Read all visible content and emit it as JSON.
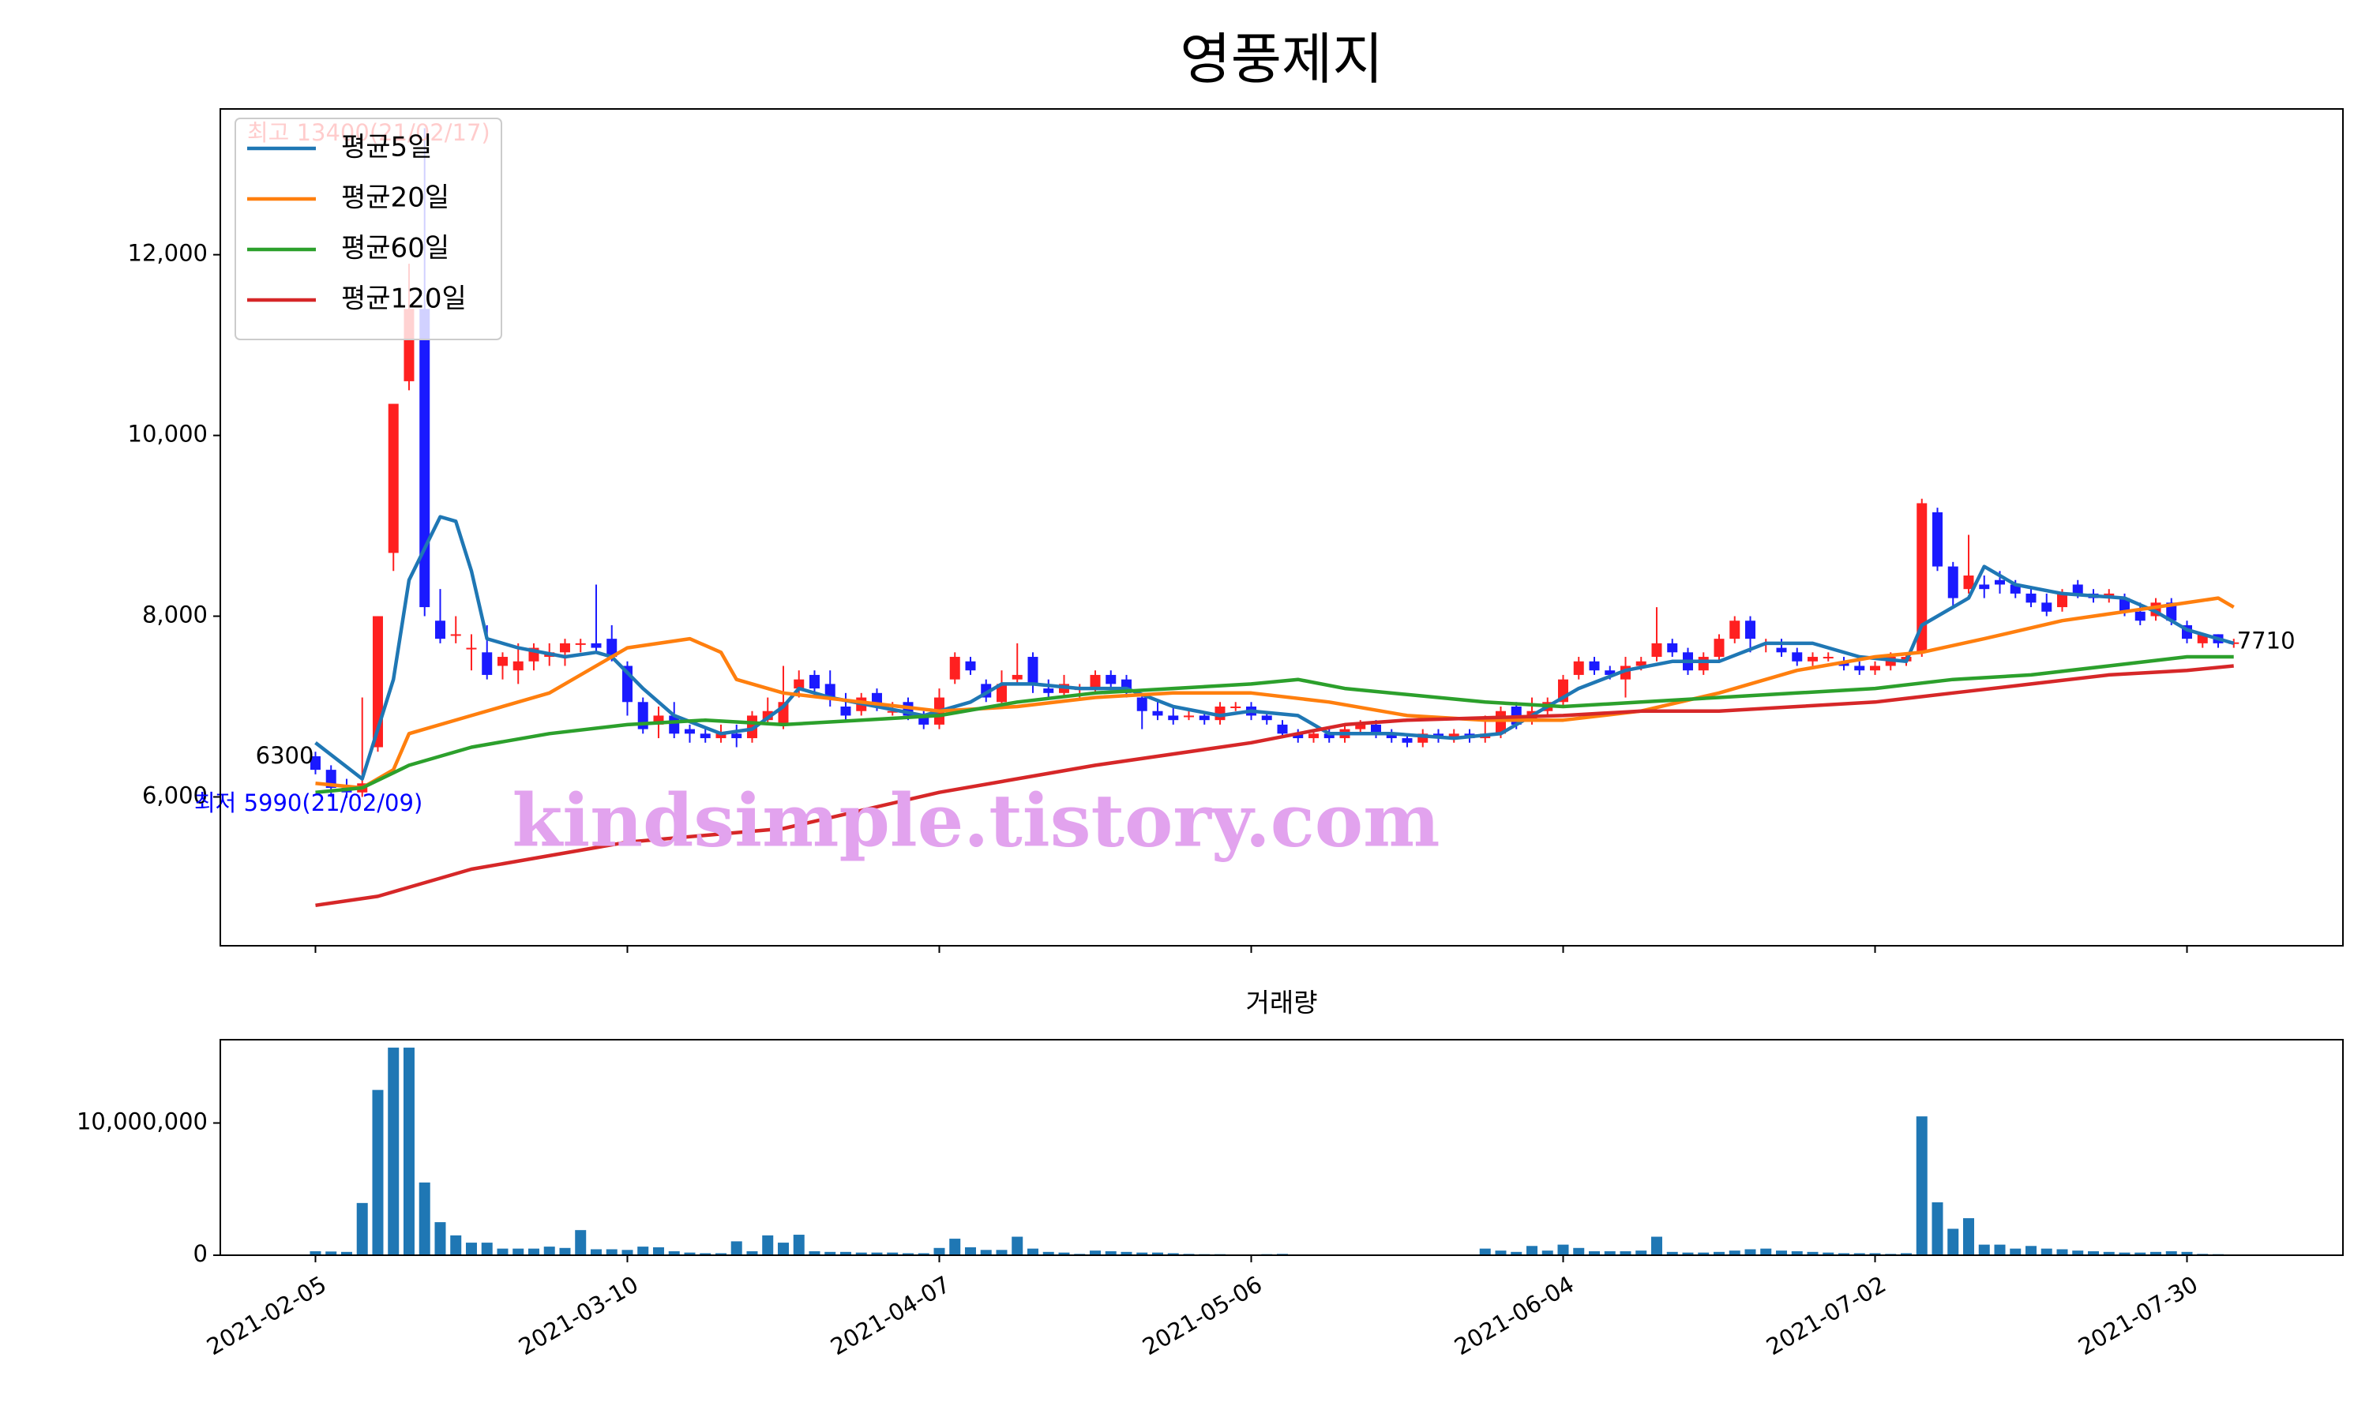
{
  "chart_data": [
    {
      "type": "candlestick",
      "title": "영풍제지",
      "open": [
        6450,
        6300,
        6100,
        6050,
        6550,
        8700,
        10600,
        11400,
        7950,
        7800,
        7650,
        7600,
        7450,
        7400,
        7500,
        7550,
        7600,
        7700,
        7700,
        7750,
        7450,
        7050,
        6800,
        6900,
        6750,
        6700,
        6650,
        6700,
        6650,
        6850,
        6800,
        7200,
        7350,
        7250,
        7000,
        6950,
        7150,
        6950,
        7050,
        6900,
        6800,
        7300,
        7500,
        7250,
        7050,
        7300,
        7550,
        7200,
        7150,
        7200,
        7200,
        7350,
        7300,
        7100,
        6950,
        6900,
        6900,
        6900,
        6850,
        7000,
        7000,
        6900,
        6800,
        6700,
        6650,
        6700,
        6650,
        6750,
        6800,
        6700,
        6650,
        6600,
        6700,
        6650,
        6700,
        6650,
        6700,
        7000,
        6850,
        6950,
        7050,
        7350,
        7500,
        7400,
        7300,
        7450,
        7550,
        7700,
        7600,
        7400,
        7550,
        7750,
        7950,
        7700,
        7650,
        7600,
        7500,
        7550,
        7500,
        7450,
        7400,
        7450,
        7500,
        7600,
        9150,
        8550,
        8300,
        8350,
        8400,
        8350,
        8250,
        8150,
        8100,
        8350,
        8250,
        8200,
        8200,
        8050,
        8000,
        8150,
        7900,
        7700,
        7800,
        7700
      ],
      "high": [
        6500,
        6350,
        6200,
        7100,
        8000,
        10350,
        11900,
        13400,
        8300,
        8000,
        7800,
        7900,
        7600,
        7700,
        7700,
        7700,
        7750,
        7750,
        8350,
        7900,
        7500,
        7100,
        7000,
        7050,
        6800,
        6750,
        6800,
        6800,
        6950,
        7100,
        7450,
        7400,
        7400,
        7400,
        7150,
        7150,
        7200,
        7050,
        7100,
        6950,
        7200,
        7600,
        7550,
        7300,
        7400,
        7700,
        7600,
        7300,
        7350,
        7250,
        7400,
        7400,
        7350,
        7150,
        7050,
        7000,
        6950,
        6950,
        7050,
        7050,
        7050,
        6950,
        6850,
        6750,
        6750,
        6750,
        6800,
        6850,
        6850,
        6750,
        6700,
        6750,
        6750,
        6750,
        6750,
        6900,
        7000,
        7050,
        7100,
        7100,
        7350,
        7550,
        7550,
        7450,
        7550,
        7550,
        8100,
        7750,
        7650,
        7600,
        7800,
        8000,
        8000,
        7750,
        7750,
        7650,
        7600,
        7600,
        7550,
        7500,
        7500,
        7600,
        7600,
        9300,
        9200,
        8600,
        8900,
        8450,
        8500,
        8400,
        8300,
        8250,
        8300,
        8400,
        8300,
        8300,
        8250,
        8150,
        8200,
        8200,
        7950,
        7800,
        7800,
        7750
      ],
      "low": [
        6250,
        6000,
        5990,
        6000,
        6500,
        8500,
        10500,
        8000,
        7700,
        7700,
        7400,
        7300,
        7300,
        7250,
        7400,
        7450,
        7450,
        7600,
        7600,
        7500,
        6900,
        6700,
        6650,
        6650,
        6600,
        6600,
        6600,
        6550,
        6600,
        6800,
        6750,
        7100,
        7100,
        7000,
        6850,
        6900,
        6950,
        6900,
        6850,
        6750,
        6750,
        7250,
        7350,
        7050,
        7000,
        7250,
        7150,
        7100,
        7100,
        7100,
        7150,
        7200,
        7100,
        6750,
        6850,
        6800,
        6850,
        6800,
        6800,
        6950,
        6850,
        6800,
        6650,
        6600,
        6600,
        6600,
        6600,
        6700,
        6650,
        6600,
        6550,
        6550,
        6600,
        6600,
        6600,
        6600,
        6650,
        6750,
        6800,
        6900,
        7000,
        7300,
        7350,
        7300,
        7100,
        7400,
        7500,
        7550,
        7350,
        7350,
        7500,
        7700,
        7600,
        7600,
        7550,
        7450,
        7450,
        7500,
        7400,
        7350,
        7350,
        7400,
        7450,
        7550,
        8500,
        8100,
        8250,
        8200,
        8250,
        8200,
        8100,
        8000,
        8050,
        8200,
        8150,
        8150,
        8000,
        7900,
        7950,
        7900,
        7700,
        7650,
        7650,
        7650
      ],
      "close": [
        6300,
        6100,
        6050,
        6150,
        8000,
        10350,
        11400,
        8100,
        7750,
        7800,
        7650,
        7350,
        7550,
        7500,
        7650,
        7600,
        7700,
        7700,
        7650,
        7550,
        7050,
        6750,
        6900,
        6700,
        6700,
        6650,
        6700,
        6650,
        6900,
        6950,
        7050,
        7300,
        7200,
        7100,
        6900,
        7100,
        7000,
        6950,
        6900,
        6800,
        7100,
        7550,
        7400,
        7100,
        7250,
        7350,
        7250,
        7150,
        7250,
        7200,
        7350,
        7250,
        7150,
        6950,
        6900,
        6850,
        6900,
        6850,
        7000,
        7000,
        6900,
        6850,
        6700,
        6650,
        6700,
        6650,
        6750,
        6800,
        6700,
        6650,
        6600,
        6700,
        6650,
        6700,
        6650,
        6700,
        6950,
        6800,
        6950,
        7050,
        7300,
        7500,
        7400,
        7350,
        7450,
        7500,
        7700,
        7600,
        7400,
        7550,
        7750,
        7950,
        7750,
        7700,
        7600,
        7500,
        7550,
        7550,
        7450,
        7400,
        7450,
        7550,
        7550,
        9250,
        8550,
        8200,
        8450,
        8300,
        8350,
        8250,
        8150,
        8050,
        8250,
        8250,
        8200,
        8250,
        8050,
        7950,
        8150,
        7950,
        7750,
        7800,
        7700,
        7710
      ],
      "up_color": "#ff2020",
      "down_color": "#1a1aff",
      "series": [
        {
          "name": "평균5일",
          "color": "#1f77b4",
          "x": [
            0,
            3,
            5,
            6,
            8,
            9,
            10,
            11,
            13,
            16,
            18,
            19,
            21,
            23,
            26,
            28,
            30,
            31,
            33,
            36,
            39,
            42,
            44,
            46,
            49,
            52,
            55,
            58,
            60,
            63,
            65,
            69,
            73,
            76,
            78,
            81,
            84,
            87,
            90,
            93,
            96,
            99,
            102,
            103,
            106,
            107,
            109,
            112,
            116,
            118,
            120,
            123
          ],
          "values": [
            6600,
            6200,
            7300,
            8400,
            9100,
            9050,
            8500,
            7750,
            7650,
            7550,
            7600,
            7550,
            7200,
            6900,
            6700,
            6750,
            7000,
            7200,
            7100,
            7000,
            6900,
            7050,
            7250,
            7250,
            7200,
            7200,
            7000,
            6900,
            6950,
            6900,
            6700,
            6700,
            6650,
            6700,
            6900,
            7200,
            7400,
            7500,
            7500,
            7700,
            7700,
            7550,
            7500,
            7900,
            8200,
            8550,
            8350,
            8250,
            8200,
            8050,
            7850,
            7700
          ]
        },
        {
          "name": "평균20일",
          "color": "#ff7f0e",
          "x": [
            0,
            3,
            5,
            6,
            10,
            15,
            20,
            24,
            26,
            27,
            30,
            35,
            40,
            45,
            50,
            55,
            60,
            65,
            70,
            75,
            80,
            85,
            90,
            95,
            100,
            103,
            107,
            112,
            116,
            120,
            122,
            123
          ],
          "values": [
            6150,
            6100,
            6300,
            6700,
            6900,
            7150,
            7650,
            7750,
            7600,
            7300,
            7150,
            7050,
            6950,
            7000,
            7100,
            7150,
            7150,
            7050,
            6900,
            6850,
            6850,
            6950,
            7150,
            7400,
            7550,
            7600,
            7750,
            7950,
            8050,
            8150,
            8200,
            8100
          ]
        },
        {
          "name": "평균60일",
          "color": "#2ca02c",
          "x": [
            0,
            3,
            6,
            10,
            15,
            20,
            25,
            30,
            35,
            40,
            45,
            50,
            55,
            60,
            63,
            66,
            75,
            80,
            85,
            90,
            95,
            100,
            105,
            110,
            115,
            120,
            123
          ],
          "values": [
            6050,
            6100,
            6350,
            6550,
            6700,
            6800,
            6850,
            6800,
            6850,
            6900,
            7050,
            7150,
            7200,
            7250,
            7300,
            7200,
            7050,
            7000,
            7050,
            7100,
            7150,
            7200,
            7300,
            7350,
            7450,
            7550,
            7550
          ]
        },
        {
          "name": "평균120일",
          "color": "#d62728",
          "x": [
            0,
            4,
            6,
            10,
            15,
            20,
            30,
            40,
            50,
            60,
            66,
            70,
            80,
            85,
            90,
            95,
            100,
            105,
            110,
            115,
            120,
            123
          ],
          "values": [
            4800,
            4900,
            5000,
            5200,
            5350,
            5500,
            5650,
            6050,
            6350,
            6600,
            6800,
            6850,
            6900,
            6950,
            6950,
            7000,
            7050,
            7150,
            7250,
            7350,
            7400,
            7450
          ]
        }
      ],
      "legend": "upper left",
      "annotations": [
        "최고 13400(21/02/17)",
        "최저 5990(21/02/09)"
      ],
      "watermark": "kindsimple.tistory.com",
      "ylim": [
        4353,
        13613
      ],
      "yticks": [
        {
          "value": 6000,
          "label": "6,000"
        },
        {
          "value": 8000,
          "label": "8,000"
        },
        {
          "value": 10000,
          "label": "10,000"
        },
        {
          "value": 12000,
          "label": "12,000"
        }
      ],
      "xlim": [
        -6.1,
        130
      ]
    },
    {
      "type": "bar",
      "title": "거래량",
      "categories": [
        "2021-02-05",
        null,
        null,
        null,
        null,
        null,
        null,
        null,
        null,
        null,
        null,
        null,
        null,
        null,
        null,
        null,
        null,
        null,
        null,
        null,
        "2021-03-10",
        null,
        null,
        null,
        null,
        null,
        null,
        null,
        null,
        null,
        null,
        null,
        null,
        null,
        null,
        null,
        null,
        null,
        null,
        null,
        "2021-04-07",
        null,
        null,
        null,
        null,
        null,
        null,
        null,
        null,
        null,
        null,
        null,
        null,
        null,
        null,
        null,
        null,
        null,
        null,
        null,
        "2021-05-06",
        null,
        null,
        null,
        null,
        null,
        null,
        null,
        null,
        null,
        null,
        null,
        null,
        null,
        null,
        null,
        null,
        null,
        null,
        null,
        "2021-06-04",
        null,
        null,
        null,
        null,
        null,
        null,
        null,
        null,
        null,
        null,
        null,
        null,
        null,
        null,
        null,
        null,
        null,
        null,
        null,
        "2021-07-02",
        null,
        null,
        null,
        null,
        null,
        null,
        null,
        null,
        null,
        null,
        null,
        null,
        null,
        null,
        null,
        null,
        null,
        null,
        null,
        "2021-07-30",
        null,
        null,
        null
      ],
      "values": [
        300000,
        280000,
        250000,
        3950000,
        12500000,
        15700000,
        15700000,
        5500000,
        2500000,
        1500000,
        950000,
        950000,
        500000,
        500000,
        500000,
        650000,
        550000,
        1900000,
        450000,
        450000,
        400000,
        650000,
        600000,
        300000,
        200000,
        150000,
        150000,
        1050000,
        300000,
        1500000,
        950000,
        1550000,
        300000,
        250000,
        250000,
        200000,
        200000,
        200000,
        150000,
        150000,
        550000,
        1250000,
        600000,
        400000,
        400000,
        1400000,
        500000,
        250000,
        200000,
        100000,
        350000,
        300000,
        250000,
        200000,
        200000,
        150000,
        100000,
        80000,
        80000,
        60000,
        60000,
        80000,
        100000,
        60000,
        50000,
        50000,
        50000,
        50000,
        50000,
        50000,
        50000,
        50000,
        50000,
        50000,
        50000,
        500000,
        350000,
        250000,
        700000,
        350000,
        800000,
        550000,
        300000,
        300000,
        300000,
        350000,
        1400000,
        250000,
        200000,
        200000,
        250000,
        350000,
        450000,
        500000,
        350000,
        300000,
        250000,
        200000,
        150000,
        150000,
        150000,
        100000,
        150000,
        10500000,
        4000000,
        2000000,
        2800000,
        800000,
        800000,
        500000,
        700000,
        500000,
        450000,
        350000,
        300000,
        250000,
        200000,
        200000,
        250000,
        300000,
        250000,
        100000,
        80000,
        60000
      ],
      "color": "#1f77b4",
      "ylim": [
        0,
        16300000
      ],
      "yticks": [
        0,
        {
          "value": 10000000,
          "label": "10,000,000"
        }
      ],
      "xlim": [
        -6.1,
        130
      ]
    }
  ]
}
